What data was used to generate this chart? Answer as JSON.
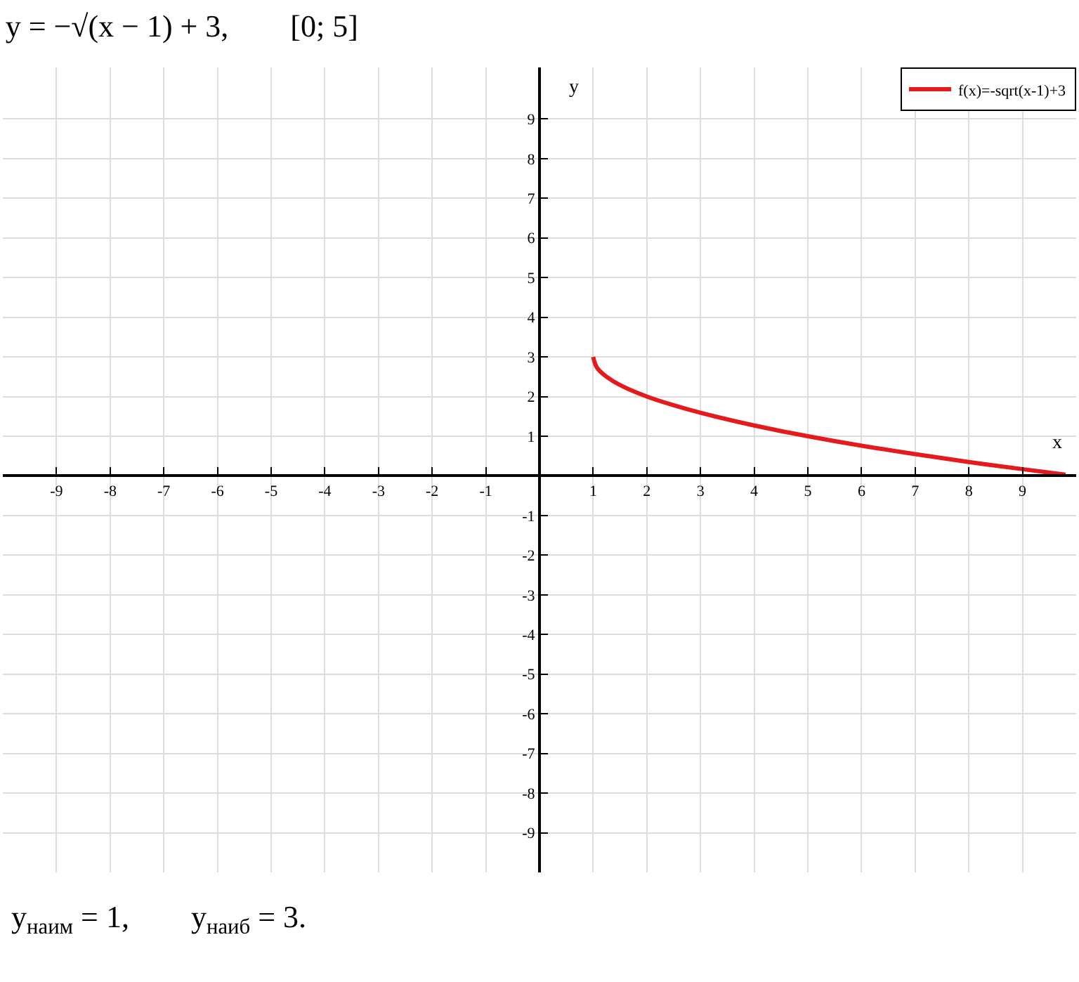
{
  "chart_data": {
    "type": "line",
    "title": "y = −√(x − 1) + 3,        [0; 5]",
    "xlabel": "x",
    "ylabel": "y",
    "x": [
      1,
      1.05,
      1.1,
      1.25,
      1.5,
      2,
      2.5,
      3,
      4,
      5,
      6,
      7,
      8,
      9,
      9.8
    ],
    "series": [
      {
        "name": "f(x)=-sqrt(x-1)+3",
        "color": "#e41a1c",
        "values": [
          3,
          2.78,
          2.68,
          2.5,
          2.29,
          2,
          1.78,
          1.59,
          1.27,
          1,
          0.76,
          0.55,
          0.35,
          0.17,
          0.03
        ]
      }
    ],
    "xlim": [
      -10,
      10
    ],
    "ylim": [
      -10,
      10.3
    ],
    "xticks": [
      -9,
      -8,
      -7,
      -6,
      -5,
      -4,
      -3,
      -2,
      -1,
      1,
      2,
      3,
      4,
      5,
      6,
      7,
      8,
      9
    ],
    "yticks": [
      -9,
      -8,
      -7,
      -6,
      -5,
      -4,
      -3,
      -2,
      -1,
      1,
      2,
      3,
      4,
      5,
      6,
      7,
      8,
      9
    ],
    "grid": true,
    "legend": "top right",
    "marker": "none",
    "line_style": "solid",
    "annotations": [
      "y$_{наим}$ = 1,        y$_{наиб}$ = 3."
    ]
  }
}
